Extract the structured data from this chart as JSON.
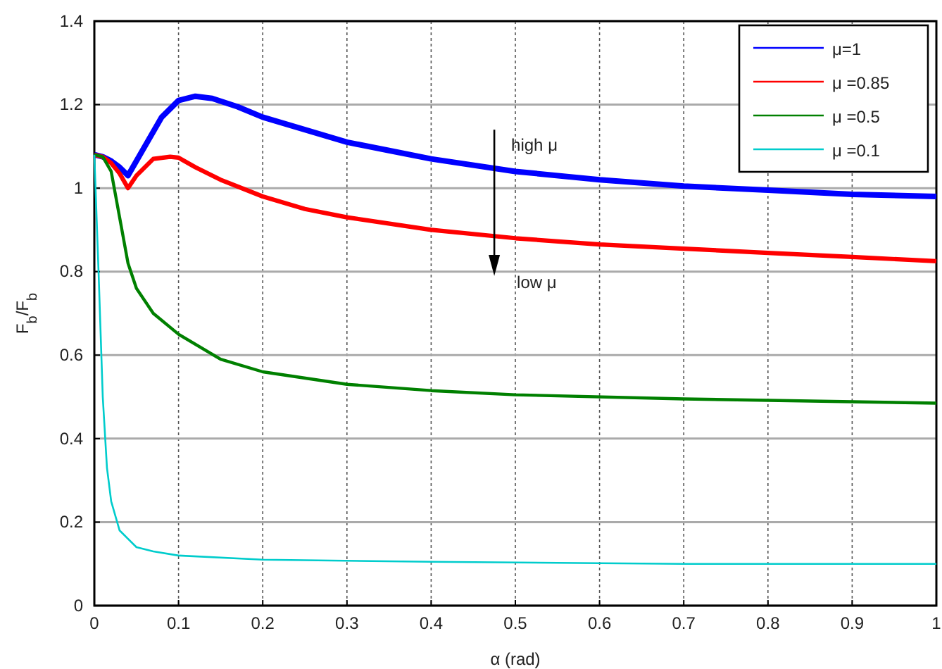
{
  "chart_data": {
    "type": "line",
    "xlabel": "α  (rad)",
    "ylabel": "F$_{b}$/F$_{b}$",
    "xlim": [
      0,
      1
    ],
    "ylim": [
      0,
      1.4
    ],
    "xticks": [
      0,
      0.1,
      0.2,
      0.3,
      0.4,
      0.5,
      0.6,
      0.7,
      0.8,
      0.9,
      {
        "value": 1,
        "label": "1"
      }
    ],
    "yticks": [
      0,
      0.2,
      0.4,
      0.6,
      0.8,
      1,
      1.2,
      1.4
    ],
    "grid": true,
    "legend": "top right",
    "line_style": "solid",
    "marker": "none",
    "annotations": [
      "high μ",
      "low μ"
    ],
    "series": [
      {
        "name": "μ=1",
        "color": "#0000ff",
        "x": [
          0,
          0.01,
          0.02,
          0.03,
          0.04,
          0.06,
          0.08,
          0.1,
          0.12,
          0.14,
          0.17,
          0.2,
          0.25,
          0.3,
          0.35,
          0.4,
          0.5,
          0.6,
          0.7,
          0.8,
          0.9,
          1
        ],
        "values": [
          1.08,
          1.075,
          1.065,
          1.05,
          1.03,
          1.1,
          1.17,
          1.21,
          1.22,
          1.215,
          1.195,
          1.17,
          1.14,
          1.11,
          1.09,
          1.07,
          1.04,
          1.02,
          1.005,
          0.995,
          0.985,
          0.98
        ]
      },
      {
        "name": "μ =0.85",
        "color": "#ff0000",
        "x": [
          0,
          0.01,
          0.02,
          0.03,
          0.04,
          0.05,
          0.07,
          0.09,
          0.1,
          0.12,
          0.15,
          0.2,
          0.25,
          0.3,
          0.4,
          0.5,
          0.6,
          0.7,
          0.8,
          0.9,
          1
        ],
        "values": [
          1.08,
          1.075,
          1.06,
          1.035,
          1.0,
          1.03,
          1.07,
          1.075,
          1.073,
          1.05,
          1.02,
          0.98,
          0.95,
          0.93,
          0.9,
          0.88,
          0.865,
          0.855,
          0.845,
          0.835,
          0.825
        ]
      },
      {
        "name": "μ =0.5",
        "color": "#008000",
        "x": [
          0,
          0.01,
          0.02,
          0.03,
          0.04,
          0.05,
          0.07,
          0.1,
          0.15,
          0.2,
          0.3,
          0.4,
          0.5,
          0.7,
          1
        ],
        "values": [
          1.08,
          1.075,
          1.04,
          0.93,
          0.82,
          0.76,
          0.7,
          0.65,
          0.59,
          0.56,
          0.53,
          0.515,
          0.505,
          0.495,
          0.485
        ]
      },
      {
        "name": "μ =0.1",
        "color": "#00cccc",
        "x": [
          0,
          0.005,
          0.01,
          0.015,
          0.02,
          0.03,
          0.05,
          0.07,
          0.1,
          0.2,
          0.4,
          0.7,
          1
        ],
        "values": [
          1.08,
          0.8,
          0.5,
          0.33,
          0.25,
          0.18,
          0.14,
          0.13,
          0.12,
          0.11,
          0.105,
          0.1,
          0.1
        ]
      }
    ]
  }
}
